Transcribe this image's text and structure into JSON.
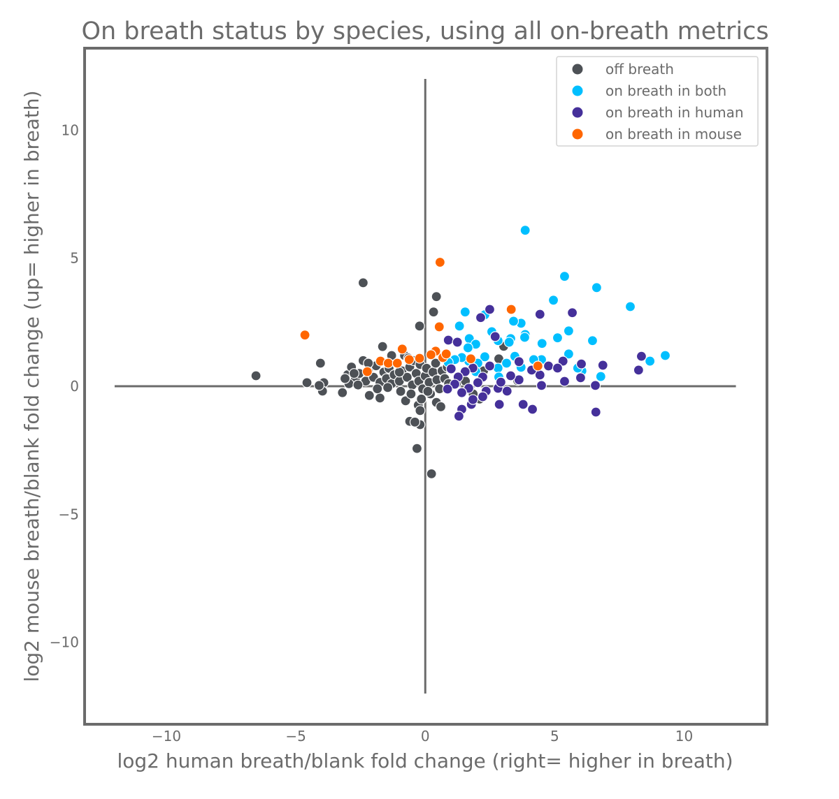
{
  "chart_data": {
    "type": "scatter",
    "title": "On breath status by species, using all on-breath metrics",
    "xlabel": "log2 human breath/blank fold change (right= higher in breath)",
    "ylabel": "log2 mouse breath/blank fold change (up= higher in breath)",
    "xlim": [
      -13.16,
      13.2
    ],
    "ylim": [
      -13.2,
      13.2
    ],
    "xticks": [
      -10,
      -5,
      0,
      5,
      10
    ],
    "yticks": [
      -10,
      -5,
      0,
      5,
      10
    ],
    "xtick_labels": [
      "−10",
      "−5",
      "0",
      "5",
      "10"
    ],
    "ytick_labels": [
      "−10",
      "−5",
      "0",
      "5",
      "10"
    ],
    "grid": false,
    "reference_lines": {
      "x0_range": [
        -12,
        12
      ],
      "y0_range": [
        -12,
        12
      ]
    },
    "legend_position": "top-right",
    "series": [
      {
        "name": "off breath",
        "color": "#4d5156",
        "points": [
          [
            -6.54,
            0.41
          ],
          [
            -4.57,
            0.14
          ],
          [
            -4.05,
            0.9
          ],
          [
            -3.92,
            0.14
          ],
          [
            -3.97,
            -0.19
          ],
          [
            -4.1,
            0.03
          ],
          [
            -3.2,
            -0.25
          ],
          [
            -2.4,
            4.04
          ],
          [
            0.43,
            3.5
          ],
          [
            0.32,
            2.9
          ],
          [
            -0.22,
            2.35
          ],
          [
            -0.32,
            -2.43
          ],
          [
            0.24,
            -3.42
          ],
          [
            -0.6,
            -1.37
          ],
          [
            -0.2,
            -1.5
          ],
          [
            -0.4,
            -1.4
          ],
          [
            3.03,
            1.56
          ],
          [
            3.57,
            0.22
          ],
          [
            2.84,
            1.07
          ],
          [
            -2.16,
            -0.36
          ],
          [
            -1.75,
            -0.46
          ],
          [
            -0.76,
            -0.57
          ],
          [
            -0.27,
            -0.74
          ],
          [
            0.43,
            -0.63
          ],
          [
            0.6,
            -0.8
          ],
          [
            -0.2,
            -0.95
          ],
          [
            2.1,
            -0.5
          ],
          [
            1.85,
            -0.3
          ],
          [
            1.2,
            0.1
          ],
          [
            2.25,
            0.6
          ],
          [
            1.55,
            0.2
          ],
          [
            -3.0,
            0.45
          ],
          [
            -2.85,
            0.75
          ],
          [
            -2.7,
            0.3
          ],
          [
            -2.55,
            0.5
          ],
          [
            -2.4,
            1.0
          ],
          [
            -2.3,
            0.2
          ],
          [
            -2.2,
            0.6
          ],
          [
            -2.0,
            0.35
          ],
          [
            -1.9,
            0.8
          ],
          [
            -1.75,
            0.15
          ],
          [
            -1.6,
            0.55
          ],
          [
            -1.5,
            0.3
          ],
          [
            -1.4,
            0.7
          ],
          [
            -1.3,
            0.1
          ],
          [
            -1.2,
            0.45
          ],
          [
            -1.1,
            0.9
          ],
          [
            -1.0,
            0.2
          ],
          [
            -0.9,
            0.6
          ],
          [
            -0.8,
            1.2
          ],
          [
            -0.7,
            0.35
          ],
          [
            -0.6,
            0.75
          ],
          [
            -0.5,
            0.05
          ],
          [
            -0.45,
            1.0
          ],
          [
            -0.35,
            0.5
          ],
          [
            -0.25,
            0.2
          ],
          [
            -0.2,
            0.85
          ],
          [
            -0.1,
            -0.1
          ],
          [
            0.0,
            0.4
          ],
          [
            0.05,
            0.7
          ],
          [
            0.15,
            0.15
          ],
          [
            0.2,
            -0.3
          ],
          [
            0.3,
            0.55
          ],
          [
            0.4,
            0.9
          ],
          [
            0.45,
            0.25
          ],
          [
            0.55,
            -0.1
          ],
          [
            0.65,
            0.6
          ],
          [
            0.75,
            0.3
          ],
          [
            -2.95,
            0.1
          ],
          [
            -2.6,
            0.05
          ],
          [
            -1.85,
            -0.1
          ],
          [
            -1.45,
            -0.05
          ],
          [
            -0.95,
            -0.2
          ],
          [
            -0.55,
            -0.3
          ],
          [
            -0.15,
            -0.5
          ],
          [
            0.1,
            -0.2
          ],
          [
            -1.65,
            1.55
          ],
          [
            -1.3,
            1.2
          ],
          [
            -0.65,
            1.1
          ],
          [
            -2.75,
            0.5
          ],
          [
            -2.2,
            0.9
          ],
          [
            -1.0,
            0.55
          ],
          [
            0.85,
            0.75
          ],
          [
            0.9,
            0.1
          ],
          [
            -3.1,
            0.3
          ]
        ]
      },
      {
        "name": "on breath in both",
        "color": "#00bfff",
        "points": [
          [
            3.86,
            6.09
          ],
          [
            5.38,
            4.29
          ],
          [
            6.62,
            3.85
          ],
          [
            7.92,
            3.11
          ],
          [
            9.27,
            1.2
          ],
          [
            8.68,
            0.98
          ],
          [
            4.95,
            3.36
          ],
          [
            3.7,
            2.46
          ],
          [
            3.41,
            2.54
          ],
          [
            1.54,
            2.9
          ],
          [
            1.32,
            2.35
          ],
          [
            3.86,
            2.02
          ],
          [
            3.84,
            1.91
          ],
          [
            2.57,
            2.13
          ],
          [
            5.54,
            2.16
          ],
          [
            5.11,
            1.89
          ],
          [
            4.51,
            1.67
          ],
          [
            6.46,
            1.78
          ],
          [
            3.3,
            1.86
          ],
          [
            3.24,
            1.72
          ],
          [
            1.7,
            1.86
          ],
          [
            1.95,
            1.64
          ],
          [
            2.81,
            1.78
          ],
          [
            1.65,
            1.5
          ],
          [
            5.54,
            1.26
          ],
          [
            3.7,
            0.74
          ],
          [
            4.49,
            1.04
          ],
          [
            4.19,
            1.04
          ],
          [
            6.05,
            0.6
          ],
          [
            6.78,
            0.38
          ],
          [
            5.89,
            0.71
          ],
          [
            3.46,
            1.17
          ],
          [
            3.14,
            0.9
          ],
          [
            2.81,
            0.71
          ],
          [
            2.3,
            1.15
          ],
          [
            2.03,
            0.9
          ],
          [
            1.68,
            0.98
          ],
          [
            1.41,
            1.12
          ],
          [
            1.14,
            1.04
          ],
          [
            0.89,
            0.93
          ],
          [
            2.84,
            0.36
          ],
          [
            1.95,
            0.57
          ],
          [
            2.3,
            2.79
          ]
        ]
      },
      {
        "name": "on breath in human",
        "color": "#45309a",
        "points": [
          [
            2.49,
            3.0
          ],
          [
            2.14,
            2.68
          ],
          [
            4.43,
            2.81
          ],
          [
            5.68,
            2.87
          ],
          [
            0.89,
            1.8
          ],
          [
            1.24,
            1.72
          ],
          [
            2.7,
            1.94
          ],
          [
            8.35,
            1.17
          ],
          [
            8.24,
            0.63
          ],
          [
            6.86,
            0.82
          ],
          [
            6.03,
            0.87
          ],
          [
            5.32,
            0.98
          ],
          [
            4.76,
            0.79
          ],
          [
            5.11,
            0.71
          ],
          [
            4.43,
            0.44
          ],
          [
            4.49,
            0.03
          ],
          [
            5.38,
            0.19
          ],
          [
            6.0,
            0.33
          ],
          [
            6.57,
            0.03
          ],
          [
            6.59,
            -1.01
          ],
          [
            4.14,
            -0.9
          ],
          [
            3.78,
            -0.71
          ],
          [
            2.86,
            -0.71
          ],
          [
            1.78,
            -0.71
          ],
          [
            1.41,
            -0.9
          ],
          [
            1.3,
            -1.17
          ],
          [
            4.11,
            0.63
          ],
          [
            3.62,
            0.25
          ],
          [
            3.3,
            0.41
          ],
          [
            2.49,
            0.79
          ],
          [
            2.22,
            0.36
          ],
          [
            1.84,
            0.71
          ],
          [
            1.54,
            0.57
          ],
          [
            1.27,
            0.36
          ],
          [
            1.0,
            0.68
          ],
          [
            2.81,
            -0.08
          ],
          [
            2.35,
            -0.19
          ],
          [
            2.03,
            0.14
          ],
          [
            1.68,
            -0.08
          ],
          [
            1.41,
            -0.25
          ],
          [
            3.16,
            -0.19
          ],
          [
            2.92,
            0.16
          ],
          [
            2.22,
            -0.41
          ],
          [
            1.84,
            -0.52
          ],
          [
            1.14,
            0.08
          ],
          [
            0.86,
            -0.11
          ],
          [
            3.62,
            0.96
          ]
        ]
      },
      {
        "name": "on breath in mouse",
        "color": "#ff6600",
        "points": [
          [
            -4.65,
            2.0
          ],
          [
            0.57,
            4.84
          ],
          [
            0.54,
            2.32
          ],
          [
            3.32,
            3.0
          ],
          [
            4.35,
            0.79
          ],
          [
            -0.89,
            1.45
          ],
          [
            -1.73,
            0.98
          ],
          [
            -1.43,
            0.9
          ],
          [
            -2.24,
            0.57
          ],
          [
            1.76,
            1.07
          ],
          [
            0.68,
            1.12
          ],
          [
            0.4,
            1.37
          ],
          [
            0.22,
            1.23
          ],
          [
            -1.08,
            0.9
          ],
          [
            -0.62,
            1.04
          ],
          [
            -0.22,
            1.09
          ],
          [
            0.81,
            1.26
          ]
        ]
      }
    ]
  }
}
